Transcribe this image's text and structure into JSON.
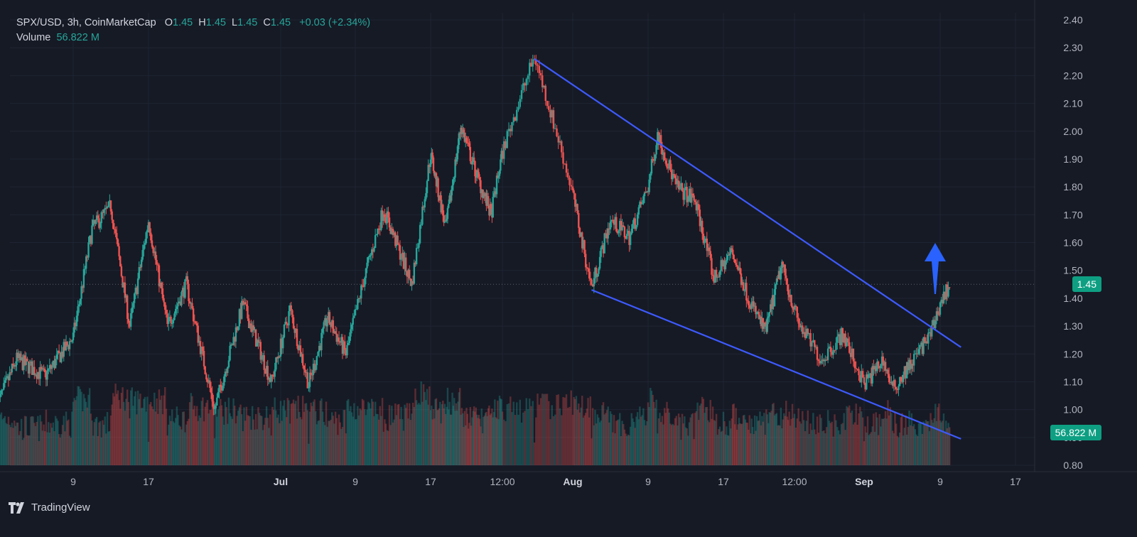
{
  "header": {
    "symbol": "SPX/USD, 3h, CoinMarketCap",
    "o_label": "O",
    "o_value": "1.45",
    "h_label": "H",
    "h_value": "1.45",
    "l_label": "L",
    "l_value": "1.45",
    "c_label": "C",
    "c_value": "1.45",
    "change": "+0.03 (+2.34%)",
    "volume_label": "Volume",
    "volume_value": "56.822 M"
  },
  "brand": {
    "name": "TradingView",
    "icon": "tradingview-logo-icon"
  },
  "price_tag": "1.45",
  "volume_tag": "56.822 M",
  "colors": {
    "background": "#161a25",
    "up": "#26a69a",
    "down": "#ef5350",
    "trendline": "#3d5afe",
    "arrow": "#2962ff",
    "axis_text": "#b2b5be",
    "tag": "#0e9f83"
  },
  "chart_data": {
    "type": "candlestick",
    "title": "",
    "ylim": [
      0.8,
      2.4
    ],
    "y_ticks": [
      "0.80",
      "0.90",
      "1.00",
      "1.10",
      "1.20",
      "1.30",
      "1.40",
      "1.50",
      "1.60",
      "1.70",
      "1.80",
      "1.90",
      "2.00",
      "2.10",
      "2.20",
      "2.30",
      "2.40"
    ],
    "x_ticks": [
      "9",
      "17",
      "Jul",
      "9",
      "17",
      "12:00",
      "Aug",
      "9",
      "17",
      "12:00",
      "Sep",
      "9",
      "17"
    ],
    "current_price": 1.45,
    "current_volume": "56.822 M",
    "price_path": [
      {
        "x": "Jun 1",
        "y": 1.02
      },
      {
        "x": "Jun 3",
        "y": 1.18
      },
      {
        "x": "Jun 6",
        "y": 1.12
      },
      {
        "x": "Jun 9",
        "y": 1.26
      },
      {
        "x": "Jun 11",
        "y": 1.65
      },
      {
        "x": "Jun 13",
        "y": 1.73
      },
      {
        "x": "Jun 15",
        "y": 1.3
      },
      {
        "x": "Jun 17",
        "y": 1.68
      },
      {
        "x": "Jun 19",
        "y": 1.3
      },
      {
        "x": "Jun 21",
        "y": 1.45
      },
      {
        "x": "Jun 24",
        "y": 1.0
      },
      {
        "x": "Jun 27",
        "y": 1.38
      },
      {
        "x": "Jun 30",
        "y": 1.1
      },
      {
        "x": "Jul 2",
        "y": 1.36
      },
      {
        "x": "Jul 4",
        "y": 1.09
      },
      {
        "x": "Jul 6",
        "y": 1.33
      },
      {
        "x": "Jul 8",
        "y": 1.2
      },
      {
        "x": "Jul 10",
        "y": 1.48
      },
      {
        "x": "Jul 12",
        "y": 1.72
      },
      {
        "x": "Jul 15",
        "y": 1.45
      },
      {
        "x": "Jul 17",
        "y": 1.92
      },
      {
        "x": "Jul 19",
        "y": 1.65
      },
      {
        "x": "Jul 21",
        "y": 2.02
      },
      {
        "x": "Jul 23",
        "y": 1.85
      },
      {
        "x": "Jul 25",
        "y": 1.7
      },
      {
        "x": "Jul 27",
        "y": 2.0
      },
      {
        "x": "Jul 29",
        "y": 2.27
      },
      {
        "x": "Jul 31",
        "y": 1.95
      },
      {
        "x": "Aug 2",
        "y": 1.6
      },
      {
        "x": "Aug 3",
        "y": 1.44
      },
      {
        "x": "Aug 5",
        "y": 1.68
      },
      {
        "x": "Aug 7",
        "y": 1.62
      },
      {
        "x": "Aug 9",
        "y": 1.8
      },
      {
        "x": "Aug 10",
        "y": 1.99
      },
      {
        "x": "Aug 12",
        "y": 1.8
      },
      {
        "x": "Aug 14",
        "y": 1.75
      },
      {
        "x": "Aug 16",
        "y": 1.47
      },
      {
        "x": "Aug 18",
        "y": 1.57
      },
      {
        "x": "Aug 20",
        "y": 1.4
      },
      {
        "x": "Aug 22",
        "y": 1.28
      },
      {
        "x": "Aug 24",
        "y": 1.52
      },
      {
        "x": "Aug 26",
        "y": 1.3
      },
      {
        "x": "Aug 28",
        "y": 1.18
      },
      {
        "x": "Aug 30",
        "y": 1.27
      },
      {
        "x": "Sep 1",
        "y": 1.09
      },
      {
        "x": "Sep 3",
        "y": 1.18
      },
      {
        "x": "Sep 4",
        "y": 1.07
      },
      {
        "x": "Sep 6",
        "y": 1.17
      },
      {
        "x": "Sep 8",
        "y": 1.27
      },
      {
        "x": "Sep 9",
        "y": 1.38
      },
      {
        "x": "Sep 10",
        "y": 1.45
      }
    ],
    "annotations": {
      "upper_trendline": [
        {
          "x": "Jul 29",
          "y": 2.26
        },
        {
          "x": "Sep 10",
          "y": 1.27
        }
      ],
      "lower_trendline": [
        {
          "x": "Aug 3",
          "y": 1.43
        },
        {
          "x": "Sep 10",
          "y": 0.91
        }
      ],
      "breakout_arrow": "up"
    }
  }
}
